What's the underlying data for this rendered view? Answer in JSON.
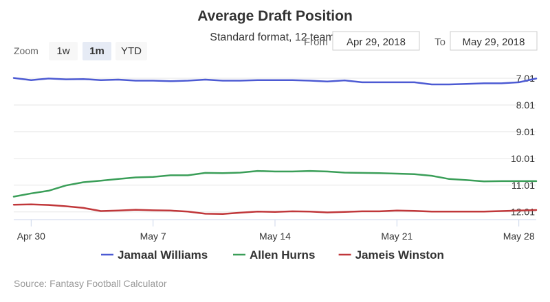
{
  "chart_data": {
    "type": "line",
    "title": "Average Draft Position",
    "subtitle": "Standard format, 12 teams",
    "x": [
      "2018-04-29",
      "2018-04-30",
      "2018-05-01",
      "2018-05-02",
      "2018-05-03",
      "2018-05-04",
      "2018-05-05",
      "2018-05-06",
      "2018-05-07",
      "2018-05-08",
      "2018-05-09",
      "2018-05-10",
      "2018-05-11",
      "2018-05-12",
      "2018-05-13",
      "2018-05-14",
      "2018-05-15",
      "2018-05-16",
      "2018-05-17",
      "2018-05-18",
      "2018-05-19",
      "2018-05-20",
      "2018-05-21",
      "2018-05-22",
      "2018-05-23",
      "2018-05-24",
      "2018-05-25",
      "2018-05-26",
      "2018-05-27",
      "2018-05-28",
      "2018-05-29"
    ],
    "x_ticks": [
      {
        "date": "2018-04-30",
        "label": "Apr 30"
      },
      {
        "date": "2018-05-07",
        "label": "May 7"
      },
      {
        "date": "2018-05-14",
        "label": "May 14"
      },
      {
        "date": "2018-05-21",
        "label": "May 21"
      },
      {
        "date": "2018-05-28",
        "label": "May 28"
      }
    ],
    "y_ticks": [
      7.01,
      8.01,
      9.01,
      10.01,
      11.01,
      12.01
    ],
    "ylim": [
      6.65,
      12.3
    ],
    "y_reversed": true,
    "y_axis_side": "right",
    "grid": true,
    "legend_position": "bottom-center",
    "series": [
      {
        "name": "Jamaal Williams",
        "color": "#4c5ad3",
        "values": [
          7.0,
          7.08,
          7.02,
          7.05,
          7.04,
          7.08,
          7.06,
          7.1,
          7.1,
          7.12,
          7.1,
          7.06,
          7.1,
          7.1,
          7.08,
          7.08,
          7.08,
          7.1,
          7.13,
          7.09,
          7.16,
          7.16,
          7.16,
          7.16,
          7.24,
          7.24,
          7.22,
          7.2,
          7.2,
          7.16,
          7.02
        ]
      },
      {
        "name": "Allen Hurns",
        "color": "#3a9e58",
        "values": [
          11.44,
          11.32,
          11.22,
          11.02,
          10.9,
          10.84,
          10.78,
          10.72,
          10.7,
          10.64,
          10.64,
          10.55,
          10.56,
          10.54,
          10.48,
          10.5,
          10.5,
          10.48,
          10.5,
          10.54,
          10.55,
          10.56,
          10.58,
          10.6,
          10.66,
          10.78,
          10.82,
          10.87,
          10.86,
          10.86,
          10.86
        ]
      },
      {
        "name": "Jameis Winston",
        "color": "#c0373a",
        "values": [
          11.74,
          11.73,
          11.75,
          11.8,
          11.86,
          11.98,
          11.96,
          11.93,
          11.95,
          11.96,
          12.0,
          12.08,
          12.09,
          12.04,
          12.0,
          12.01,
          11.99,
          12.0,
          12.03,
          12.01,
          11.99,
          11.99,
          11.96,
          11.97,
          12.0,
          12.0,
          12.0,
          12.0,
          11.98,
          11.96,
          11.94
        ]
      }
    ]
  },
  "zoom": {
    "label": "Zoom",
    "buttons": [
      {
        "label": "1w",
        "active": false
      },
      {
        "label": "1m",
        "active": true
      },
      {
        "label": "YTD",
        "active": false
      }
    ]
  },
  "range": {
    "from_label": "From",
    "from_value": "Apr 29, 2018",
    "to_label": "To",
    "to_value": "May 29, 2018"
  },
  "credits": "Source: Fantasy Football Calculator"
}
